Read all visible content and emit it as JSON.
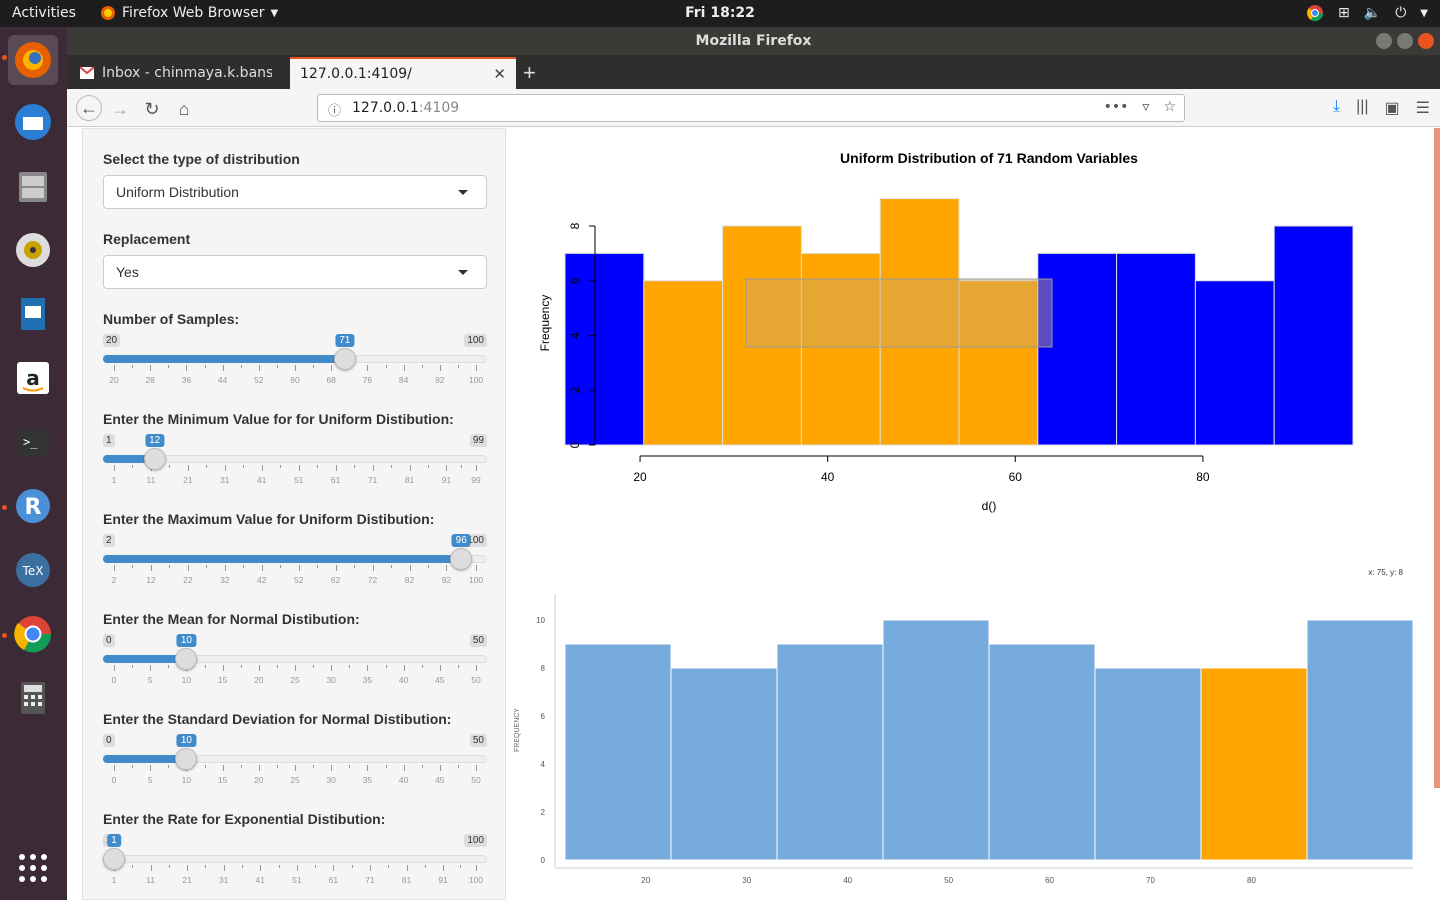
{
  "topbar": {
    "activities": "Activities",
    "app": "Firefox Web Browser",
    "clock": "Fri 18:22"
  },
  "window": {
    "title": "Mozilla Firefox"
  },
  "tabs": [
    {
      "label": "Inbox - chinmaya.k.bansa"
    },
    {
      "label": "127.0.0.1:4109/"
    }
  ],
  "url": {
    "host": "127.0.0.1",
    "port": ":4109"
  },
  "sidebar": {
    "dist_label": "Select the type of distribution",
    "dist_value": "Uniform Distribution",
    "repl_label": "Replacement",
    "repl_value": "Yes",
    "sliders": [
      {
        "label": "Number of Samples:",
        "min": 20,
        "max": 100,
        "value": 71,
        "ticks": [
          20,
          28,
          36,
          44,
          52,
          60,
          68,
          76,
          84,
          92,
          100
        ]
      },
      {
        "label": "Enter the Minimum Value for for Uniform Distibution:",
        "min": 1,
        "max": 99,
        "value": 12,
        "ticks": [
          1,
          11,
          21,
          31,
          41,
          51,
          61,
          71,
          81,
          91,
          99
        ]
      },
      {
        "label": "Enter the Maximum Value for Uniform Distibution:",
        "min": 2,
        "max": 100,
        "value": 96,
        "ticks": [
          2,
          12,
          22,
          32,
          42,
          52,
          62,
          72,
          82,
          92,
          100
        ]
      },
      {
        "label": "Enter the Mean for Normal Distibution:",
        "min": 0,
        "max": 50,
        "value": 10,
        "ticks": [
          0,
          5,
          10,
          15,
          20,
          25,
          30,
          35,
          40,
          45,
          50
        ]
      },
      {
        "label": "Enter the Standard Deviation for Normal Distibution:",
        "min": 0,
        "max": 50,
        "value": 10,
        "ticks": [
          0,
          5,
          10,
          15,
          20,
          25,
          30,
          35,
          40,
          45,
          50
        ]
      },
      {
        "label": "Enter the Rate for Exponential Distibution:",
        "min": 1,
        "max": 100,
        "value": 1,
        "ticks": [
          1,
          11,
          21,
          31,
          41,
          51,
          61,
          71,
          81,
          91,
          100
        ]
      }
    ]
  },
  "chart_data": [
    {
      "type": "bar",
      "title": "Uniform Distribution of 71 Random Variables",
      "xlabel": "d()",
      "ylabel": "Frequency",
      "bin_edges": [
        12,
        20.4,
        28.8,
        37.2,
        45.6,
        54,
        62.4,
        70.8,
        79.2,
        87.6,
        96
      ],
      "values": [
        7,
        6,
        8,
        7,
        9,
        6,
        7,
        7,
        6,
        8
      ],
      "highlight": [
        false,
        true,
        true,
        true,
        true,
        true,
        false,
        false,
        false,
        false
      ],
      "xticks": [
        20,
        40,
        60,
        80
      ],
      "yticks": [
        0,
        2,
        4,
        6,
        8
      ],
      "ylim": [
        0,
        8
      ],
      "base_color": "#0000ff",
      "highlight_color": "#ffa500"
    },
    {
      "type": "bar",
      "title": "",
      "xlabel": "",
      "ylabel": "FREQUENCY",
      "hover_text": "x: 75, y: 8",
      "bin_edges": [
        12,
        22.5,
        33,
        43.5,
        54,
        64.5,
        75,
        85.5,
        96
      ],
      "values": [
        9,
        8,
        9,
        10,
        9,
        8,
        8,
        10
      ],
      "highlight": [
        false,
        false,
        false,
        false,
        false,
        false,
        true,
        false
      ],
      "xticks": [
        20,
        30,
        40,
        50,
        60,
        70,
        80
      ],
      "yticks": [
        0,
        2,
        4,
        6,
        8,
        10
      ],
      "ylim": [
        0,
        10
      ],
      "base_color": "#77aadd",
      "highlight_color": "#ffa500"
    }
  ]
}
